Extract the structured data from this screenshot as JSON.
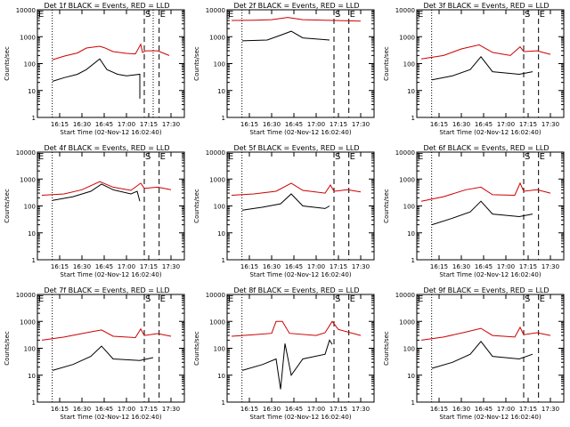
{
  "chart_data": [
    {
      "type": "line",
      "title": "Det 1f BLACK = Events, RED = LLD",
      "xlabel": "Start Time (02-Nov-12 16:02:40)",
      "ylabel": "Counts/sec",
      "yscale": "log",
      "ylim": [
        1,
        10000
      ],
      "xticks": [
        "16:15",
        "16:30",
        "16:45",
        "17:00",
        "17:15",
        "17:30"
      ],
      "markers": {
        "S": "17:12",
        "E": "17:22"
      },
      "dotted": [
        "16:10",
        "17:18"
      ],
      "series": [
        {
          "name": "RED = LLD",
          "color": "#cc0000",
          "points": [
            [
              16.17,
              140
            ],
            [
              16.3,
              190
            ],
            [
              16.45,
              250
            ],
            [
              16.55,
              380
            ],
            [
              16.7,
              440
            ],
            [
              16.75,
              390
            ],
            [
              16.85,
              280
            ],
            [
              17.0,
              240
            ],
            [
              17.1,
              230
            ],
            [
              17.16,
              520
            ],
            [
              17.18,
              260
            ],
            [
              17.22,
              300
            ],
            [
              17.35,
              300
            ],
            [
              17.48,
              200
            ]
          ]
        },
        {
          "name": "BLACK = Events",
          "color": "#000000",
          "points": [
            [
              16.17,
              22
            ],
            [
              16.3,
              30
            ],
            [
              16.45,
              40
            ],
            [
              16.55,
              60
            ],
            [
              16.7,
              150
            ],
            [
              16.78,
              60
            ],
            [
              16.9,
              40
            ],
            [
              17.0,
              35
            ],
            [
              17.15,
              40
            ],
            [
              17.15,
              5
            ]
          ]
        }
      ]
    },
    {
      "type": "line",
      "title": "Det 2f BLACK = Events, RED = LLD",
      "xlabel": "Start Time (02-Nov-12 16:02:40)",
      "ylabel": "Counts/sec",
      "yscale": "log",
      "ylim": [
        1,
        10000
      ],
      "xticks": [
        "16:15",
        "16:30",
        "16:45",
        "17:00",
        "17:15",
        "17:30"
      ],
      "markers": {
        "S": "17:12",
        "E": "17:22"
      },
      "dotted": [
        "16:10"
      ],
      "series": [
        {
          "name": "RED = LLD",
          "color": "#cc0000",
          "points": [
            [
              16.05,
              4000
            ],
            [
              16.3,
              4100
            ],
            [
              16.5,
              4300
            ],
            [
              16.68,
              5200
            ],
            [
              16.85,
              4300
            ],
            [
              17.2,
              4000
            ],
            [
              17.5,
              3800
            ]
          ]
        },
        {
          "name": "BLACK = Events",
          "color": "#000000",
          "points": [
            [
              16.17,
              700
            ],
            [
              16.45,
              750
            ],
            [
              16.62,
              1200
            ],
            [
              16.72,
              1600
            ],
            [
              16.85,
              900
            ],
            [
              17.15,
              750
            ]
          ]
        }
      ]
    },
    {
      "type": "line",
      "title": "Det 3f BLACK = Events, RED = LLD",
      "xlabel": "Start Time (02-Nov-12 16:02:40)",
      "ylabel": "Counts/sec",
      "yscale": "log",
      "ylim": [
        1,
        10000
      ],
      "xticks": [
        "16:15",
        "16:30",
        "16:45",
        "17:00",
        "17:15",
        "17:30"
      ],
      "markers": {
        "S": "17:12",
        "E": "17:22"
      },
      "dotted": [
        "16:10"
      ],
      "series": [
        {
          "name": "RED = LLD",
          "color": "#cc0000",
          "points": [
            [
              16.05,
              150
            ],
            [
              16.3,
              200
            ],
            [
              16.5,
              350
            ],
            [
              16.7,
              500
            ],
            [
              16.85,
              260
            ],
            [
              17.05,
              200
            ],
            [
              17.16,
              420
            ],
            [
              17.2,
              280
            ],
            [
              17.35,
              300
            ],
            [
              17.5,
              220
            ]
          ]
        },
        {
          "name": "BLACK = Events",
          "color": "#000000",
          "points": [
            [
              16.17,
              25
            ],
            [
              16.4,
              35
            ],
            [
              16.6,
              60
            ],
            [
              16.72,
              180
            ],
            [
              16.85,
              50
            ],
            [
              17.15,
              40
            ],
            [
              17.3,
              50
            ]
          ]
        }
      ]
    },
    {
      "type": "line",
      "title": "Det 4f BLACK = Events, RED = LLD",
      "xlabel": "Start Time (02-Nov-12 16:02:40)",
      "ylabel": "Counts/sec",
      "yscale": "log",
      "ylim": [
        1,
        10000
      ],
      "xticks": [
        "16:15",
        "16:30",
        "16:45",
        "17:00",
        "17:15",
        "17:30"
      ],
      "markers": {
        "S": "17:12",
        "E": "17:22"
      },
      "dotted": [
        "16:10"
      ],
      "series": [
        {
          "name": "RED = LLD",
          "color": "#cc0000",
          "points": [
            [
              16.05,
              250
            ],
            [
              16.3,
              280
            ],
            [
              16.5,
              400
            ],
            [
              16.7,
              800
            ],
            [
              16.85,
              500
            ],
            [
              17.05,
              380
            ],
            [
              17.16,
              700
            ],
            [
              17.2,
              450
            ],
            [
              17.35,
              500
            ],
            [
              17.5,
              400
            ]
          ]
        },
        {
          "name": "BLACK = Events",
          "color": "#000000",
          "points": [
            [
              16.17,
              160
            ],
            [
              16.4,
              220
            ],
            [
              16.6,
              350
            ],
            [
              16.72,
              650
            ],
            [
              16.85,
              400
            ],
            [
              17.05,
              280
            ],
            [
              17.12,
              350
            ],
            [
              17.15,
              150
            ]
          ]
        }
      ]
    },
    {
      "type": "line",
      "title": "Det 5f BLACK = Events, RED = LLD",
      "xlabel": "Start Time (02-Nov-12 16:02:40)",
      "ylabel": "Counts/sec",
      "yscale": "log",
      "ylim": [
        1,
        10000
      ],
      "xticks": [
        "16:15",
        "16:30",
        "16:45",
        "17:00",
        "17:15",
        "17:30"
      ],
      "markers": {
        "S": "17:12",
        "E": "17:22"
      },
      "dotted": [
        "16:10"
      ],
      "series": [
        {
          "name": "RED = LLD",
          "color": "#cc0000",
          "points": [
            [
              16.05,
              250
            ],
            [
              16.3,
              280
            ],
            [
              16.55,
              350
            ],
            [
              16.72,
              700
            ],
            [
              16.85,
              380
            ],
            [
              17.1,
              300
            ],
            [
              17.16,
              600
            ],
            [
              17.2,
              350
            ],
            [
              17.35,
              400
            ],
            [
              17.5,
              330
            ]
          ]
        },
        {
          "name": "BLACK = Events",
          "color": "#000000",
          "points": [
            [
              16.17,
              70
            ],
            [
              16.4,
              90
            ],
            [
              16.6,
              120
            ],
            [
              16.72,
              280
            ],
            [
              16.85,
              100
            ],
            [
              17.1,
              80
            ],
            [
              17.15,
              100
            ]
          ]
        }
      ]
    },
    {
      "type": "line",
      "title": "Det 6f BLACK = Events, RED = LLD",
      "xlabel": "Start Time (02-Nov-12 16:02:40)",
      "ylabel": "Counts/sec",
      "yscale": "log",
      "ylim": [
        1,
        10000
      ],
      "xticks": [
        "16:15",
        "16:30",
        "16:45",
        "17:00",
        "17:15",
        "17:30"
      ],
      "markers": {
        "S": "17:12",
        "E": "17:22"
      },
      "dotted": [
        "16:10"
      ],
      "series": [
        {
          "name": "RED = LLD",
          "color": "#cc0000",
          "points": [
            [
              16.05,
              150
            ],
            [
              16.3,
              220
            ],
            [
              16.55,
              400
            ],
            [
              16.72,
              500
            ],
            [
              16.85,
              260
            ],
            [
              17.1,
              250
            ],
            [
              17.16,
              700
            ],
            [
              17.2,
              350
            ],
            [
              17.35,
              400
            ],
            [
              17.5,
              300
            ]
          ]
        },
        {
          "name": "BLACK = Events",
          "color": "#000000",
          "points": [
            [
              16.17,
              20
            ],
            [
              16.4,
              35
            ],
            [
              16.6,
              60
            ],
            [
              16.72,
              150
            ],
            [
              16.85,
              50
            ],
            [
              17.15,
              40
            ],
            [
              17.3,
              50
            ]
          ]
        }
      ]
    },
    {
      "type": "line",
      "title": "Det 7f BLACK = Events, RED = LLD",
      "xlabel": "Start Time (02-Nov-12 16:02:40)",
      "ylabel": "Counts/sec",
      "yscale": "log",
      "ylim": [
        1,
        10000
      ],
      "xticks": [
        "16:15",
        "16:30",
        "16:45",
        "17:00",
        "17:15",
        "17:30"
      ],
      "markers": {
        "S": "17:12",
        "E": "17:22"
      },
      "dotted": [
        "16:10"
      ],
      "series": [
        {
          "name": "RED = LLD",
          "color": "#cc0000",
          "points": [
            [
              16.05,
              200
            ],
            [
              16.3,
              260
            ],
            [
              16.55,
              380
            ],
            [
              16.72,
              480
            ],
            [
              16.85,
              280
            ],
            [
              17.1,
              250
            ],
            [
              17.16,
              520
            ],
            [
              17.2,
              300
            ],
            [
              17.35,
              350
            ],
            [
              17.5,
              280
            ]
          ]
        },
        {
          "name": "BLACK = Events",
          "color": "#000000",
          "points": [
            [
              16.17,
              15
            ],
            [
              16.4,
              25
            ],
            [
              16.6,
              50
            ],
            [
              16.72,
              120
            ],
            [
              16.85,
              40
            ],
            [
              17.15,
              35
            ],
            [
              17.3,
              45
            ]
          ]
        }
      ]
    },
    {
      "type": "line",
      "title": "Det 8f BLACK = Events, RED = LLD",
      "xlabel": "Start Time (02-Nov-12 16:02:40)",
      "ylabel": "Counts/sec",
      "yscale": "log",
      "ylim": [
        1,
        10000
      ],
      "xticks": [
        "16:15",
        "16:30",
        "16:45",
        "17:00",
        "17:15",
        "17:30"
      ],
      "markers": {
        "S": "17:12",
        "E": "17:22"
      },
      "dotted": [
        "16:10"
      ],
      "series": [
        {
          "name": "RED = LLD",
          "color": "#cc0000",
          "points": [
            [
              16.05,
              280
            ],
            [
              16.3,
              320
            ],
            [
              16.5,
              360
            ],
            [
              16.55,
              1000
            ],
            [
              16.62,
              1000
            ],
            [
              16.7,
              360
            ],
            [
              17.0,
              300
            ],
            [
              17.1,
              380
            ],
            [
              17.18,
              1000
            ],
            [
              17.25,
              500
            ],
            [
              17.5,
              300
            ]
          ]
        },
        {
          "name": "BLACK = Events",
          "color": "#000000",
          "points": [
            [
              16.17,
              15
            ],
            [
              16.4,
              25
            ],
            [
              16.55,
              40
            ],
            [
              16.6,
              3
            ],
            [
              16.65,
              150
            ],
            [
              16.72,
              10
            ],
            [
              16.85,
              40
            ],
            [
              17.1,
              60
            ],
            [
              17.15,
              200
            ],
            [
              17.18,
              140
            ]
          ]
        }
      ]
    },
    {
      "type": "line",
      "title": "Det 9f BLACK = Events, RED = LLD",
      "xlabel": "Start Time (02-Nov-12 16:02:40)",
      "ylabel": "Counts/sec",
      "yscale": "log",
      "ylim": [
        1,
        10000
      ],
      "xticks": [
        "16:15",
        "16:30",
        "16:45",
        "17:00",
        "17:15",
        "17:30"
      ],
      "markers": {
        "S": "17:12",
        "E": "17:22"
      },
      "dotted": [
        "16:10"
      ],
      "series": [
        {
          "name": "RED = LLD",
          "color": "#cc0000",
          "points": [
            [
              16.05,
              200
            ],
            [
              16.3,
              260
            ],
            [
              16.55,
              400
            ],
            [
              16.72,
              550
            ],
            [
              16.85,
              300
            ],
            [
              17.1,
              260
            ],
            [
              17.16,
              600
            ],
            [
              17.2,
              320
            ],
            [
              17.35,
              380
            ],
            [
              17.5,
              300
            ]
          ]
        },
        {
          "name": "BLACK = Events",
          "color": "#000000",
          "points": [
            [
              16.17,
              18
            ],
            [
              16.4,
              30
            ],
            [
              16.6,
              60
            ],
            [
              16.72,
              180
            ],
            [
              16.85,
              50
            ],
            [
              17.15,
              40
            ],
            [
              17.3,
              60
            ]
          ]
        }
      ]
    }
  ]
}
